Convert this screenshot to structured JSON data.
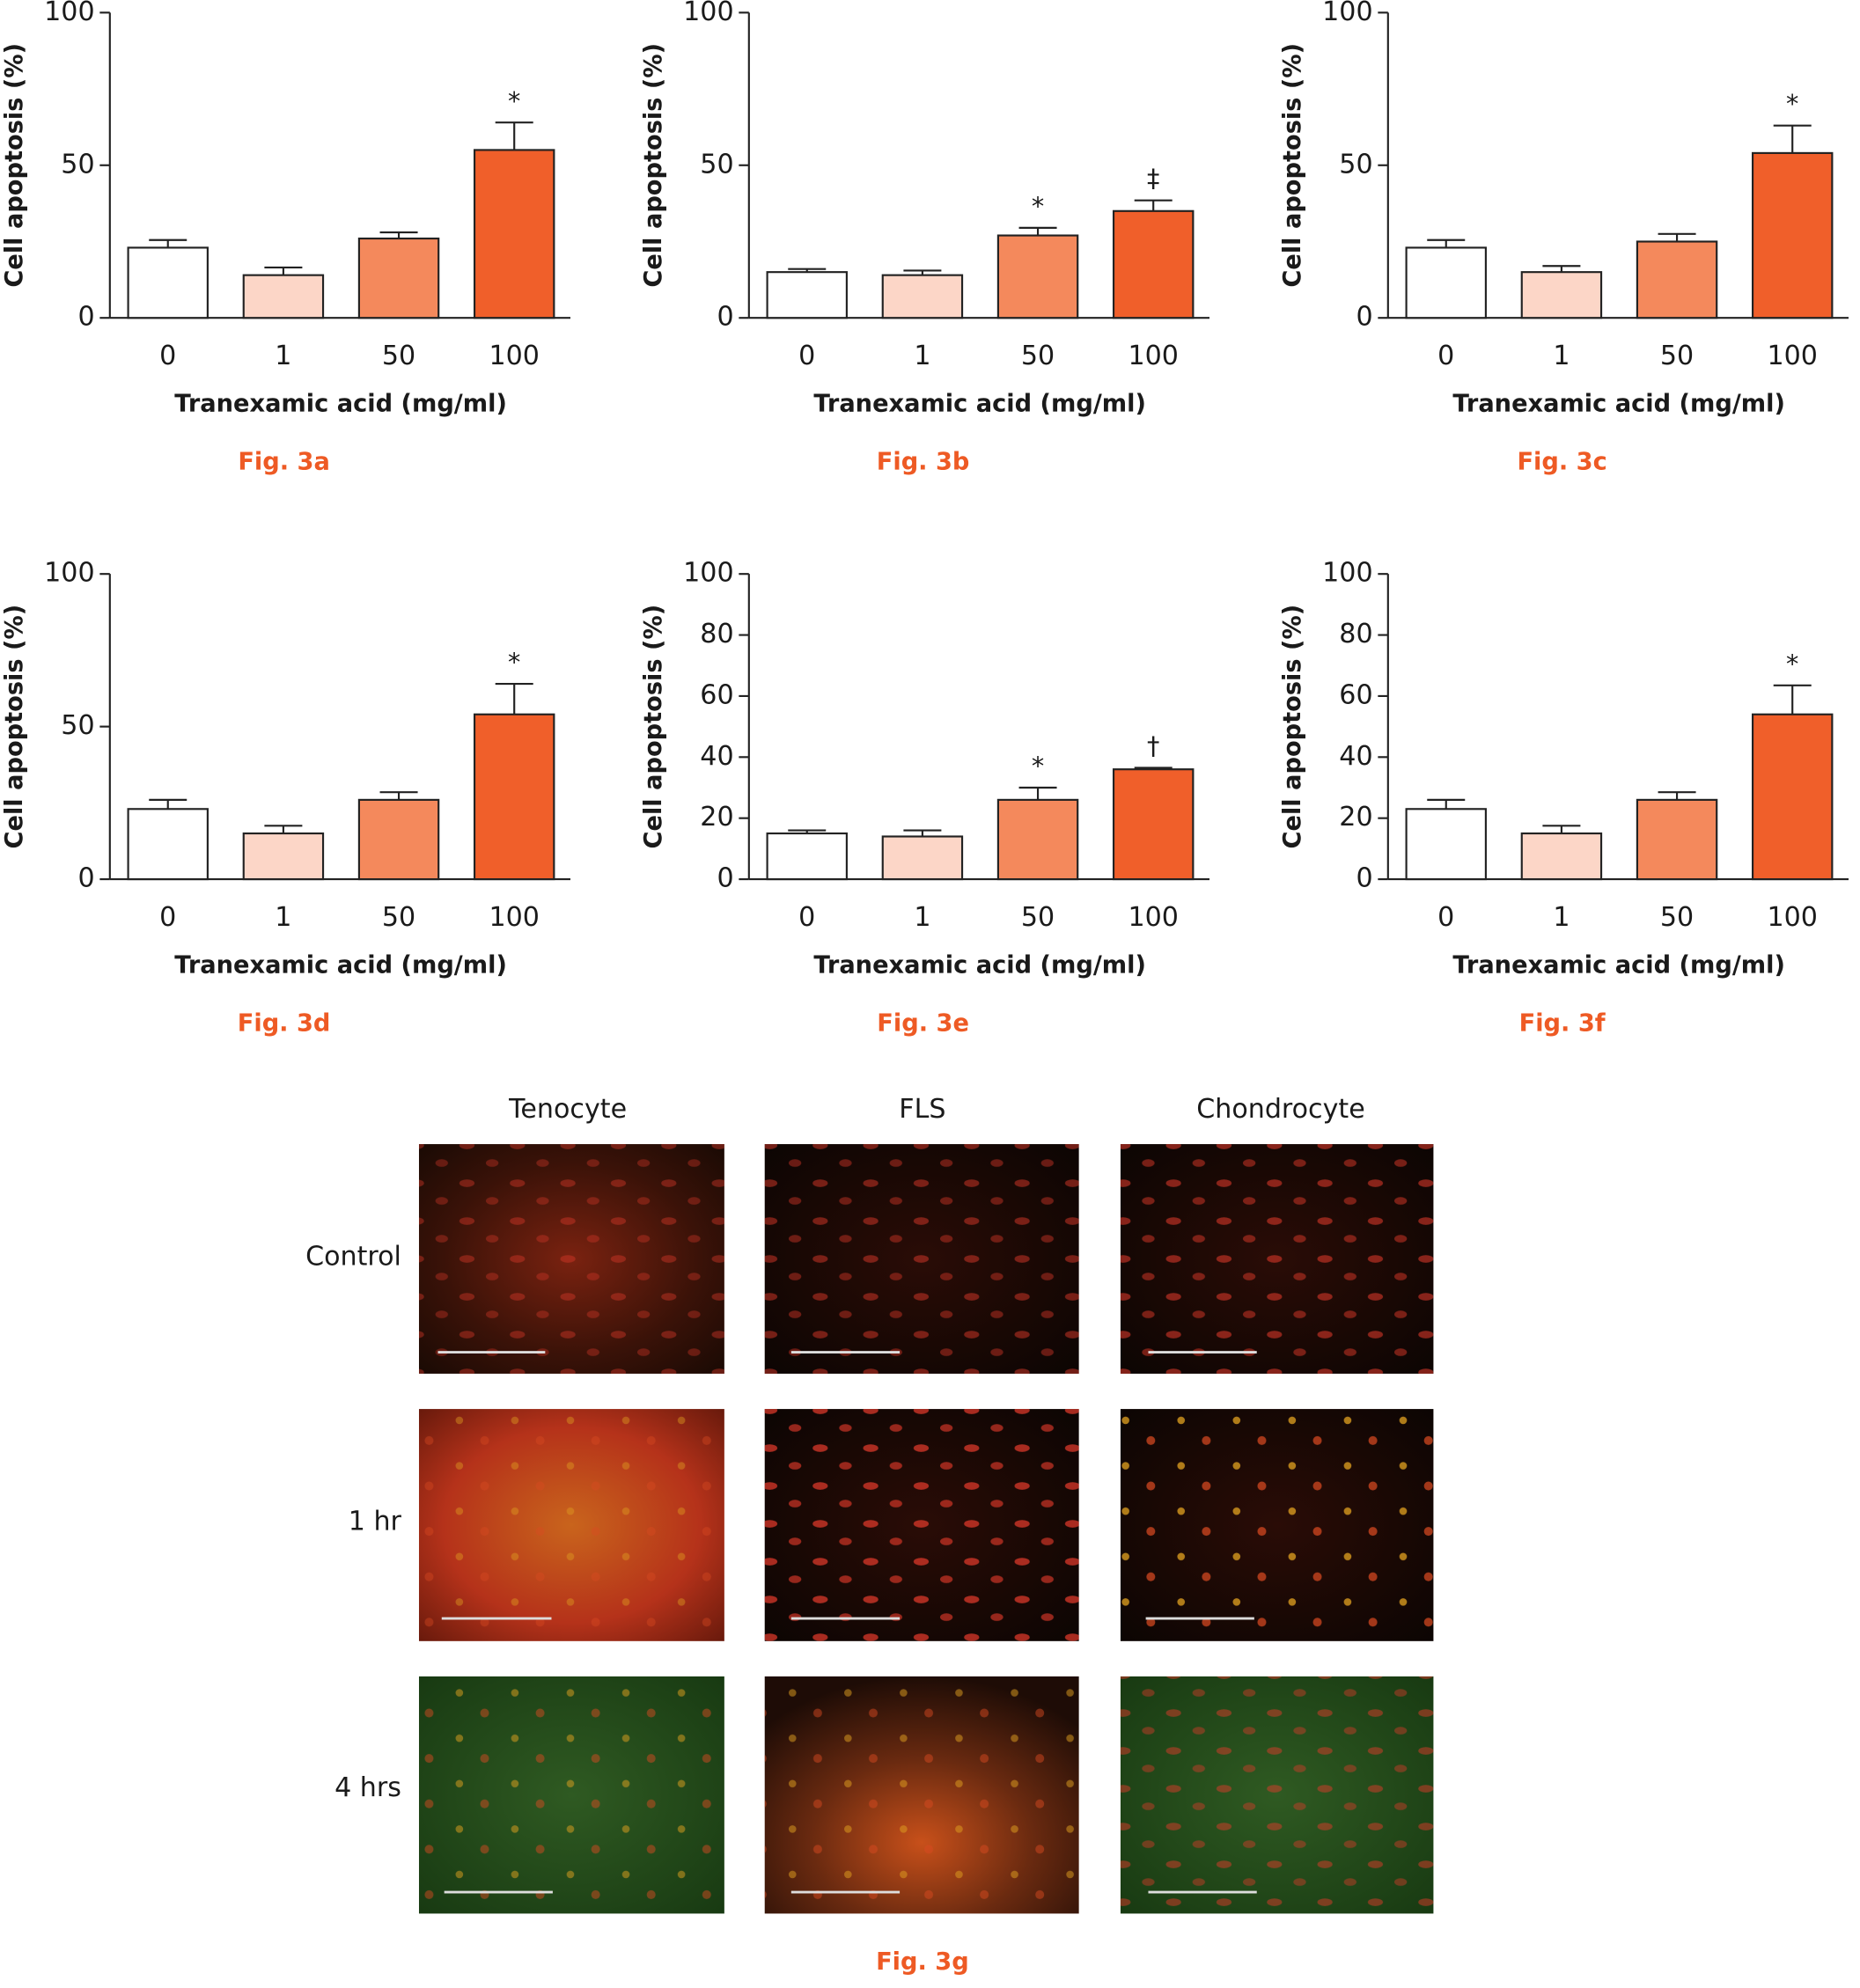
{
  "chart_data": [
    {
      "type": "bar",
      "caption": "Fig. 3a",
      "y_label": "Cell apoptosis (%)",
      "x_label": "Tranexamic acid (mg/ml)",
      "categories": [
        "0",
        "1",
        "50",
        "100"
      ],
      "values": [
        23,
        14,
        26,
        55
      ],
      "errors": [
        2.5,
        2.5,
        2,
        9
      ],
      "annotations": [
        null,
        null,
        null,
        "*"
      ],
      "colors": [
        "#ffffff",
        "#fcd6c7",
        "#f4895c",
        "#f05f2a"
      ],
      "ylim": [
        0,
        100
      ],
      "yticks": [
        0,
        50,
        100
      ]
    },
    {
      "type": "bar",
      "caption": "Fig. 3b",
      "y_label": "Cell apoptosis (%)",
      "x_label": "Tranexamic acid (mg/ml)",
      "categories": [
        "0",
        "1",
        "50",
        "100"
      ],
      "values": [
        15,
        14,
        27,
        35
      ],
      "errors": [
        1,
        1.5,
        2.5,
        3.5
      ],
      "annotations": [
        null,
        null,
        "*",
        "‡"
      ],
      "colors": [
        "#ffffff",
        "#fcd6c7",
        "#f4895c",
        "#f05f2a"
      ],
      "ylim": [
        0,
        100
      ],
      "yticks": [
        0,
        50,
        100
      ]
    },
    {
      "type": "bar",
      "caption": "Fig. 3c",
      "y_label": "Cell apoptosis (%)",
      "x_label": "Tranexamic acid (mg/ml)",
      "categories": [
        "0",
        "1",
        "50",
        "100"
      ],
      "values": [
        23,
        15,
        25,
        54
      ],
      "errors": [
        2.5,
        2,
        2.5,
        9
      ],
      "annotations": [
        null,
        null,
        null,
        "*"
      ],
      "colors": [
        "#ffffff",
        "#fcd6c7",
        "#f4895c",
        "#f05f2a"
      ],
      "ylim": [
        0,
        100
      ],
      "yticks": [
        0,
        50,
        100
      ]
    },
    {
      "type": "bar",
      "caption": "Fig. 3d",
      "y_label": "Cell apoptosis (%)",
      "x_label": "Tranexamic acid (mg/ml)",
      "categories": [
        "0",
        "1",
        "50",
        "100"
      ],
      "values": [
        23,
        15,
        26,
        54
      ],
      "errors": [
        3,
        2.5,
        2.5,
        10
      ],
      "annotations": [
        null,
        null,
        null,
        "*"
      ],
      "colors": [
        "#ffffff",
        "#fcd6c7",
        "#f4895c",
        "#f05f2a"
      ],
      "ylim": [
        0,
        100
      ],
      "yticks": [
        0,
        50,
        100
      ]
    },
    {
      "type": "bar",
      "caption": "Fig. 3e",
      "y_label": "Cell apoptosis (%)",
      "x_label": "Tranexamic acid (mg/ml)",
      "categories": [
        "0",
        "1",
        "50",
        "100"
      ],
      "values": [
        15,
        14,
        26,
        36
      ],
      "errors": [
        1,
        2,
        4,
        0.5
      ],
      "annotations": [
        null,
        null,
        "*",
        "†"
      ],
      "colors": [
        "#ffffff",
        "#fcd6c7",
        "#f4895c",
        "#f05f2a"
      ],
      "ylim": [
        0,
        100
      ],
      "yticks": [
        0,
        20,
        40,
        60,
        80,
        100
      ]
    },
    {
      "type": "bar",
      "caption": "Fig. 3f",
      "y_label": "Cell apoptosis (%)",
      "x_label": "Tranexamic acid (mg/ml)",
      "categories": [
        "0",
        "1",
        "50",
        "100"
      ],
      "values": [
        23,
        15,
        26,
        54
      ],
      "errors": [
        3,
        2.5,
        2.5,
        9.5
      ],
      "annotations": [
        null,
        null,
        null,
        "*"
      ],
      "colors": [
        "#ffffff",
        "#fcd6c7",
        "#f4895c",
        "#f05f2a"
      ],
      "ylim": [
        0,
        100
      ],
      "yticks": [
        0,
        20,
        40,
        60,
        80,
        100
      ]
    }
  ],
  "figure_3g": {
    "column_labels": [
      "Tenocyte",
      "FLS",
      "Chondrocyte"
    ],
    "row_labels": [
      "Control",
      "1 hr",
      "4 hrs"
    ],
    "caption": "Fig. 3g"
  }
}
